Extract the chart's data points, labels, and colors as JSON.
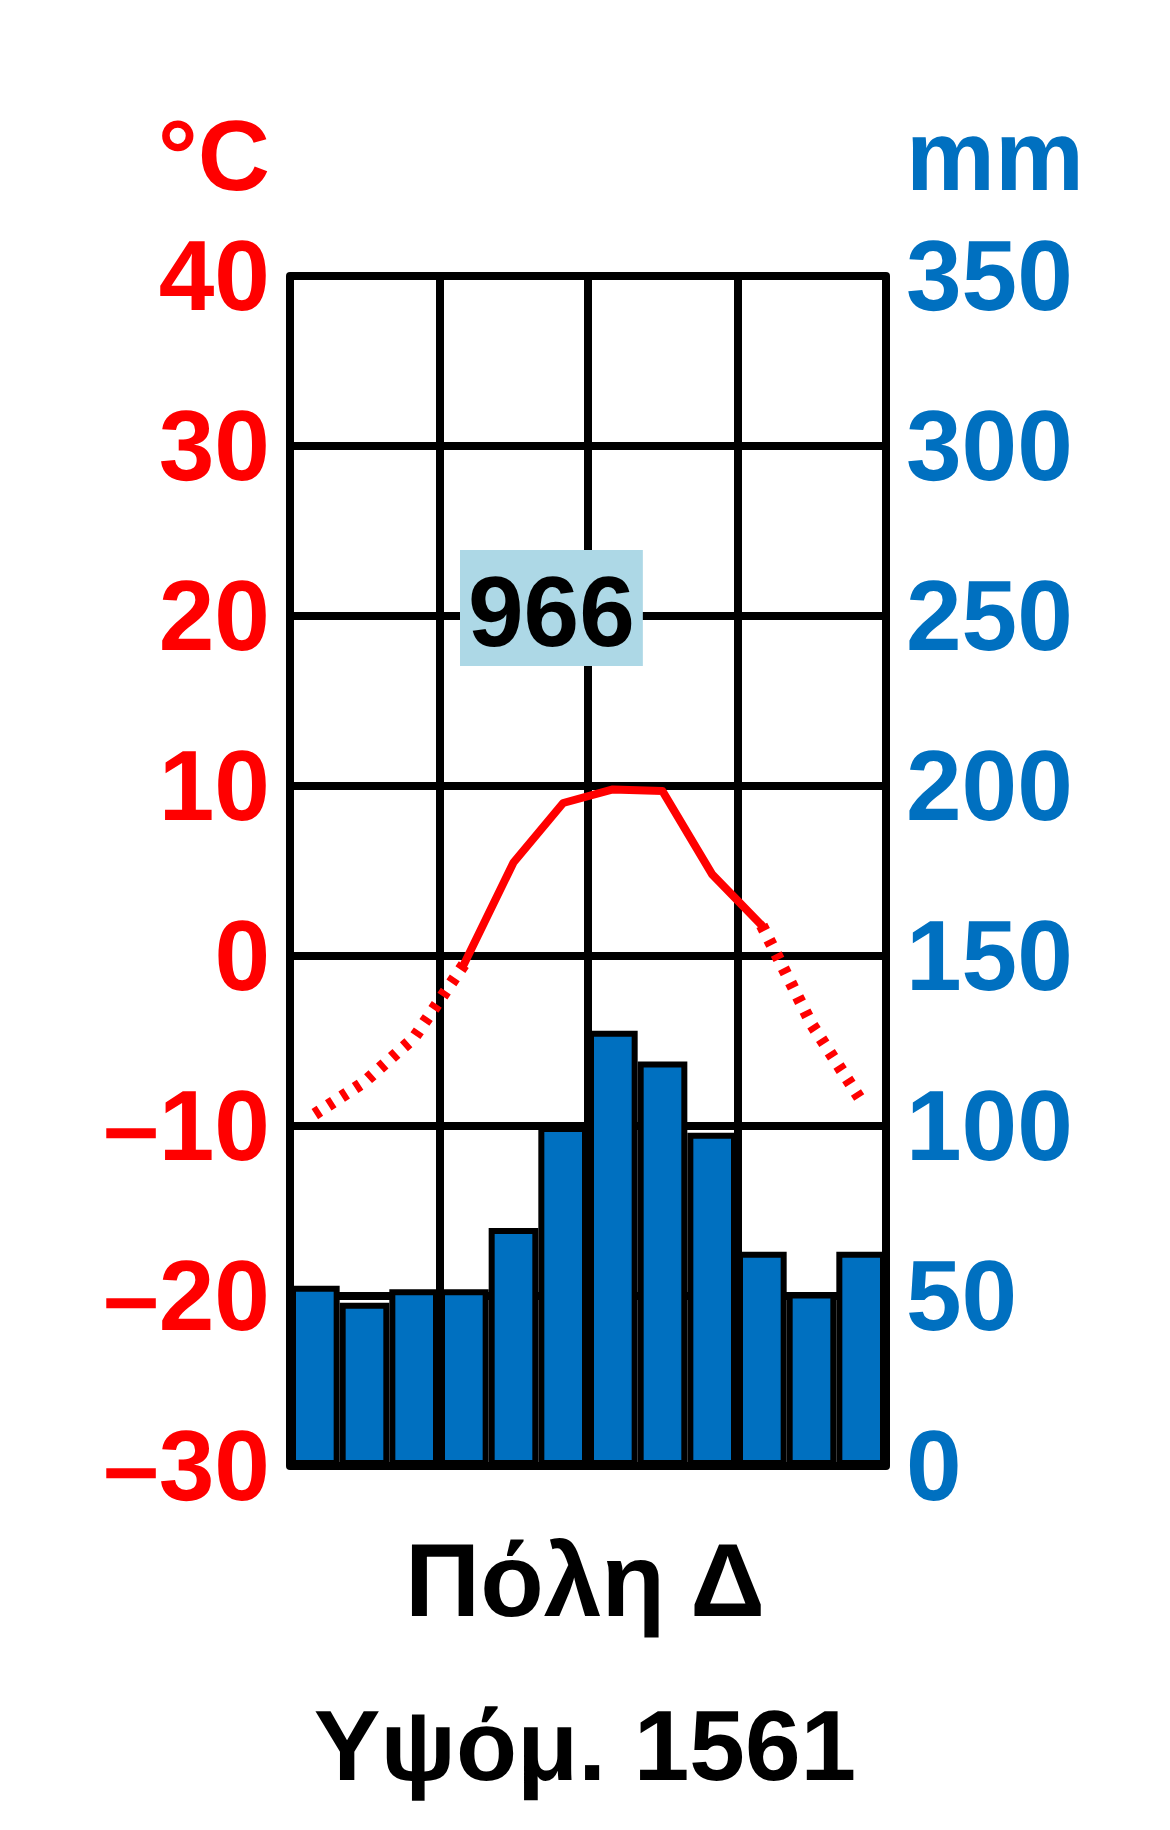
{
  "chart_data": {
    "type": "bar",
    "title": "Πόλη Δ",
    "subtitle": "Υψόμ. 1561",
    "ylabel": "°C",
    "y2label": "mm",
    "annotations": [
      "966"
    ],
    "categories": [
      null,
      null,
      null,
      null,
      null,
      null,
      null,
      null,
      null,
      null,
      null,
      null
    ],
    "series": [
      {
        "axis": "y2",
        "color": "#0070c0",
        "values": [
          53,
          48,
          52,
          52,
          70,
          100,
          128,
          119,
          98,
          63,
          51,
          63
        ]
      },
      {
        "type": "line",
        "color": "#ff0000",
        "line_style": "dotted",
        "values": [
          -9.3,
          -7.4,
          -4.8,
          -0.5,
          null,
          null,
          null,
          null,
          null,
          null,
          null,
          null
        ]
      },
      {
        "type": "line",
        "color": "#ff0000",
        "line_style": "solid",
        "values": [
          null,
          null,
          null,
          -0.5,
          5.5,
          9.0,
          9.8,
          9.7,
          4.8,
          1.8,
          null,
          null
        ]
      },
      {
        "type": "line",
        "color": "#ff0000",
        "line_style": "dotted",
        "values": [
          null,
          null,
          null,
          null,
          null,
          null,
          null,
          null,
          null,
          1.8,
          -4.0,
          -8.5
        ]
      }
    ],
    "ylim": [
      -30,
      40
    ],
    "yticks": [
      {
        "value": -30,
        "label": "–30"
      },
      {
        "value": -20,
        "label": "–20"
      },
      {
        "value": -10,
        "label": "–10"
      },
      0,
      10,
      20,
      30,
      40
    ],
    "y2lim": [
      0,
      350
    ],
    "y2ticks": [
      0,
      50,
      100,
      150,
      200,
      250,
      300,
      350
    ],
    "grid": true,
    "marker": "none"
  }
}
